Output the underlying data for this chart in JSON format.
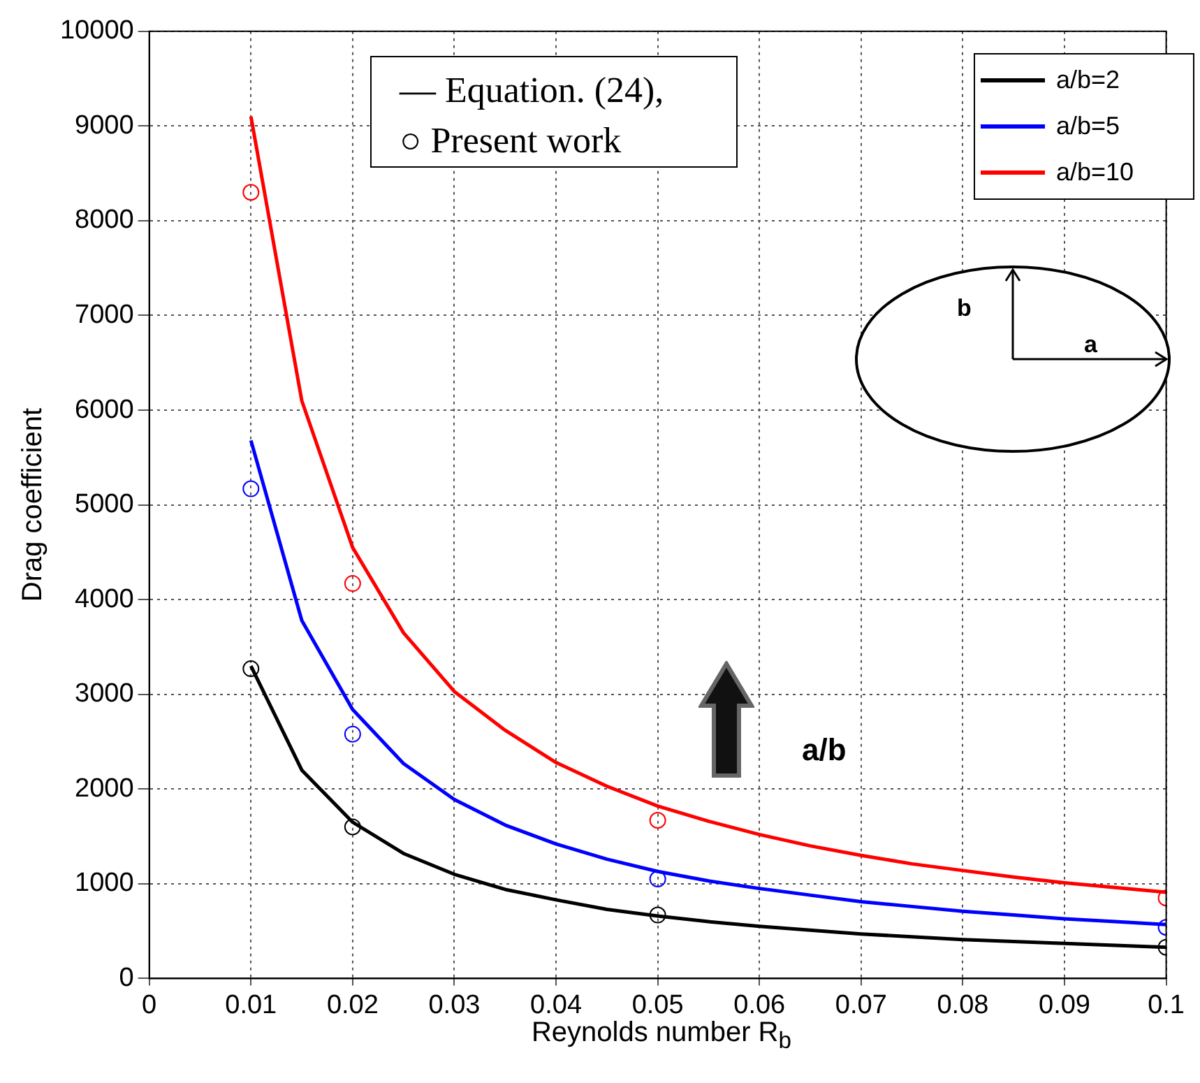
{
  "chart_data": {
    "type": "line",
    "xlabel": "Reynolds number R$_{b}$",
    "ylabel": "Drag coefficient",
    "xlim": [
      0,
      0.1
    ],
    "xticks": [
      0,
      0.01,
      0.02,
      0.03,
      0.04,
      0.05,
      0.06,
      0.07,
      0.08,
      0.09,
      0.1
    ],
    "ylim": [
      0,
      10000
    ],
    "yticks": [
      0,
      1000,
      2000,
      3000,
      4000,
      5000,
      6000,
      7000,
      8000,
      9000,
      10000
    ],
    "grid": true,
    "legend": "top right",
    "marker": "none",
    "line_style": "solid",
    "series": [
      {
        "name": "a/b=2",
        "color": "#000000",
        "x": [
          0.01,
          0.015,
          0.02,
          0.025,
          0.03,
          0.035,
          0.04,
          0.045,
          0.05,
          0.055,
          0.06,
          0.065,
          0.07,
          0.075,
          0.08,
          0.085,
          0.09,
          0.095,
          0.1
        ],
        "values": [
          3300,
          2200,
          1650,
          1320,
          1100,
          940,
          830,
          730,
          660,
          600,
          550,
          510,
          470,
          440,
          410,
          390,
          370,
          350,
          330
        ]
      },
      {
        "name": "a/b=5",
        "color": "#0000ff",
        "x": [
          0.01,
          0.015,
          0.02,
          0.025,
          0.03,
          0.035,
          0.04,
          0.045,
          0.05,
          0.055,
          0.06,
          0.065,
          0.07,
          0.075,
          0.08,
          0.085,
          0.09,
          0.095,
          0.1
        ],
        "values": [
          5680,
          3780,
          2840,
          2270,
          1890,
          1620,
          1420,
          1260,
          1130,
          1030,
          950,
          880,
          810,
          760,
          710,
          670,
          630,
          600,
          570
        ]
      },
      {
        "name": "a/b=10",
        "color": "#ff0000",
        "x": [
          0.01,
          0.015,
          0.02,
          0.025,
          0.03,
          0.035,
          0.04,
          0.045,
          0.05,
          0.055,
          0.06,
          0.065,
          0.07,
          0.075,
          0.08,
          0.085,
          0.09,
          0.095,
          0.1
        ],
        "values": [
          9100,
          6100,
          4550,
          3650,
          3030,
          2620,
          2280,
          2030,
          1820,
          1660,
          1520,
          1400,
          1300,
          1210,
          1140,
          1070,
          1010,
          960,
          910
        ]
      },
      {
        "type": "scatter",
        "marker": "circle",
        "color": "#000000",
        "x": [
          0.01,
          0.02,
          0.05,
          0.1
        ],
        "values": [
          3270,
          1600,
          670,
          330
        ]
      },
      {
        "type": "scatter",
        "marker": "circle",
        "color": "#0000ff",
        "x": [
          0.01,
          0.02,
          0.05,
          0.1
        ],
        "values": [
          5170,
          2580,
          1050,
          540
        ]
      },
      {
        "type": "scatter",
        "marker": "circle",
        "color": "#ff0000",
        "x": [
          0.01,
          0.02,
          0.05,
          0.1
        ],
        "values": [
          8300,
          4170,
          1670,
          850
        ]
      }
    ],
    "annotations": [
      "— Equation. (24),",
      "○  Present work",
      "a",
      "b",
      "a/b"
    ]
  }
}
